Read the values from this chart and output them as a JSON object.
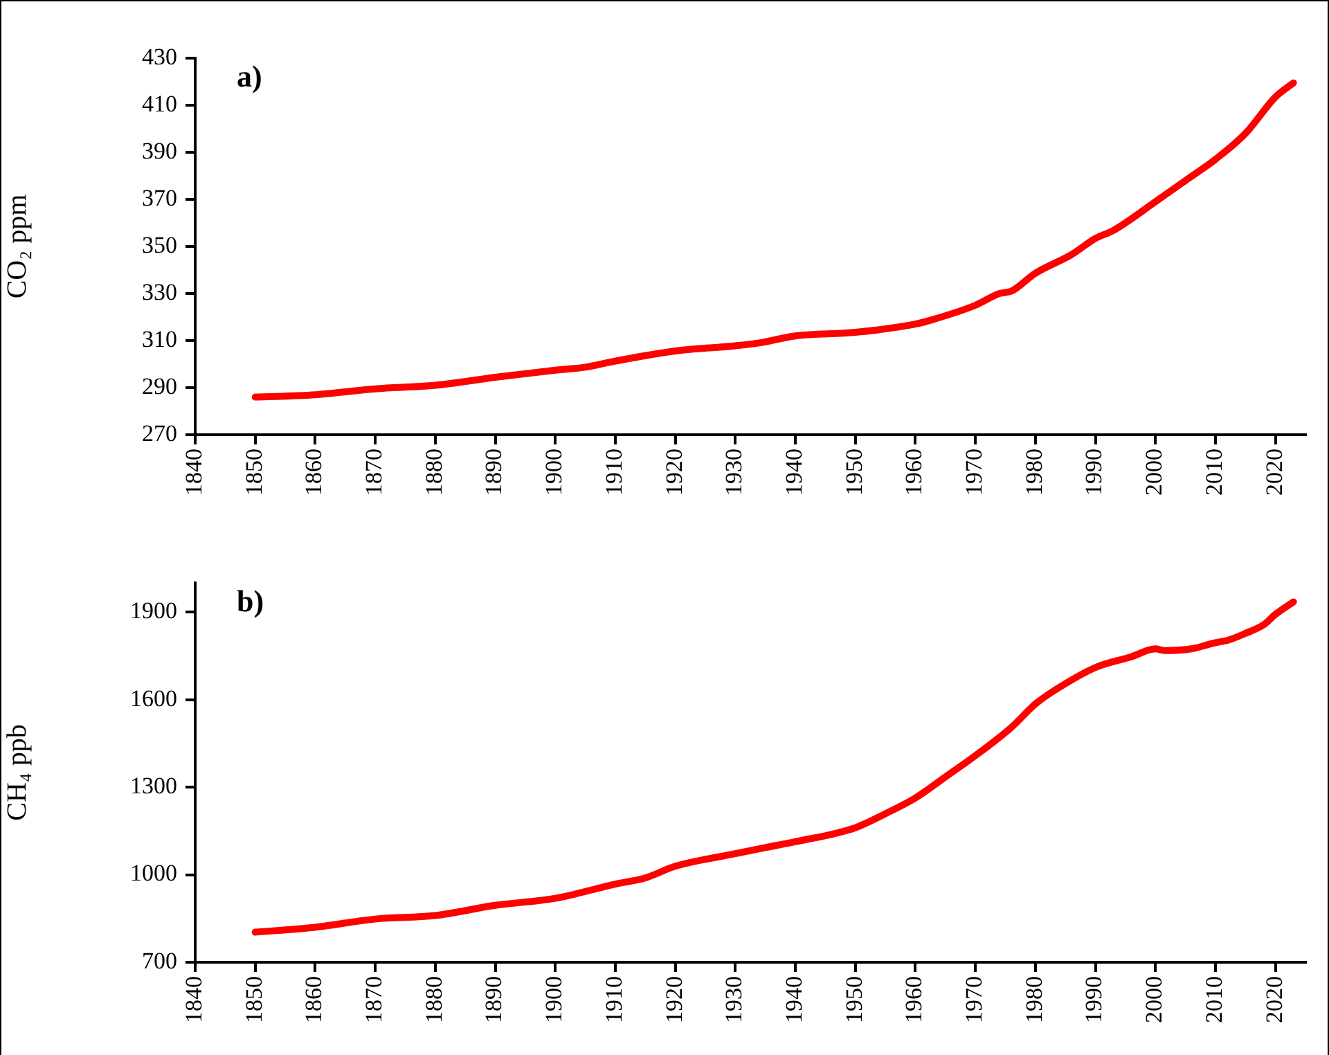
{
  "chart_data": [
    {
      "type": "line",
      "ylabel": "CO₂ ppm",
      "annotations": [
        "a)"
      ],
      "legend": false,
      "marker": "none",
      "line_style": "solid",
      "x": [
        1850,
        1860,
        1870,
        1880,
        1890,
        1900,
        1905,
        1910,
        1920,
        1930,
        1934,
        1940,
        1950,
        1960,
        1963,
        1970,
        1974,
        1976,
        1980,
        1986,
        1990,
        1993,
        2000,
        2005,
        2010,
        2015,
        2020,
        2023
      ],
      "series": [
        {
          "color": "#ff0000",
          "values": [
            286,
            287,
            289.5,
            291,
            294.4,
            297.4,
            298.7,
            301.3,
            305.6,
            307.8,
            309,
            312,
            313.5,
            317,
            319,
            325,
            330,
            331,
            338.6,
            346.5,
            353.4,
            356.8,
            369,
            378,
            387,
            398,
            413.5,
            419.5
          ]
        }
      ],
      "xlim": [
        1840,
        2025
      ],
      "xticks": [
        1840,
        1850,
        1860,
        1870,
        1880,
        1890,
        1900,
        1910,
        1920,
        1930,
        1940,
        1950,
        1960,
        1970,
        1980,
        1990,
        2000,
        2010,
        2020
      ],
      "ylim": [
        270,
        430
      ],
      "yticks": [
        270,
        290,
        310,
        330,
        350,
        370,
        390,
        410,
        430
      ]
    },
    {
      "type": "line",
      "ylabel": "CH₄ ppb",
      "annotations": [
        "b)"
      ],
      "legend": false,
      "marker": "none",
      "line_style": "solid",
      "x": [
        1850,
        1860,
        1870,
        1880,
        1890,
        1900,
        1910,
        1915,
        1920,
        1930,
        1935,
        1940,
        1950,
        1955,
        1960,
        1965,
        1970,
        1976,
        1980,
        1983,
        1990,
        1996,
        2000,
        2001.5,
        2006,
        2010,
        2012,
        2015,
        2018,
        2020,
        2023
      ],
      "series": [
        {
          "color": "#ff0000",
          "values": [
            803,
            820,
            848,
            860,
            895,
            919,
            968,
            989,
            1029,
            1072,
            1093,
            1113,
            1161,
            1209,
            1263,
            1335,
            1408,
            1505,
            1585,
            1629,
            1710,
            1747,
            1774,
            1768,
            1774,
            1795,
            1803,
            1827,
            1856,
            1892,
            1935
          ]
        }
      ],
      "xlim": [
        1840,
        2025
      ],
      "xticks": [
        1840,
        1850,
        1860,
        1870,
        1880,
        1890,
        1900,
        1910,
        1920,
        1930,
        1940,
        1950,
        1960,
        1970,
        1980,
        1990,
        2000,
        2010,
        2020
      ],
      "ylim": [
        700,
        2000
      ],
      "yticks": [
        700,
        1000,
        1300,
        1600,
        1900
      ]
    }
  ]
}
